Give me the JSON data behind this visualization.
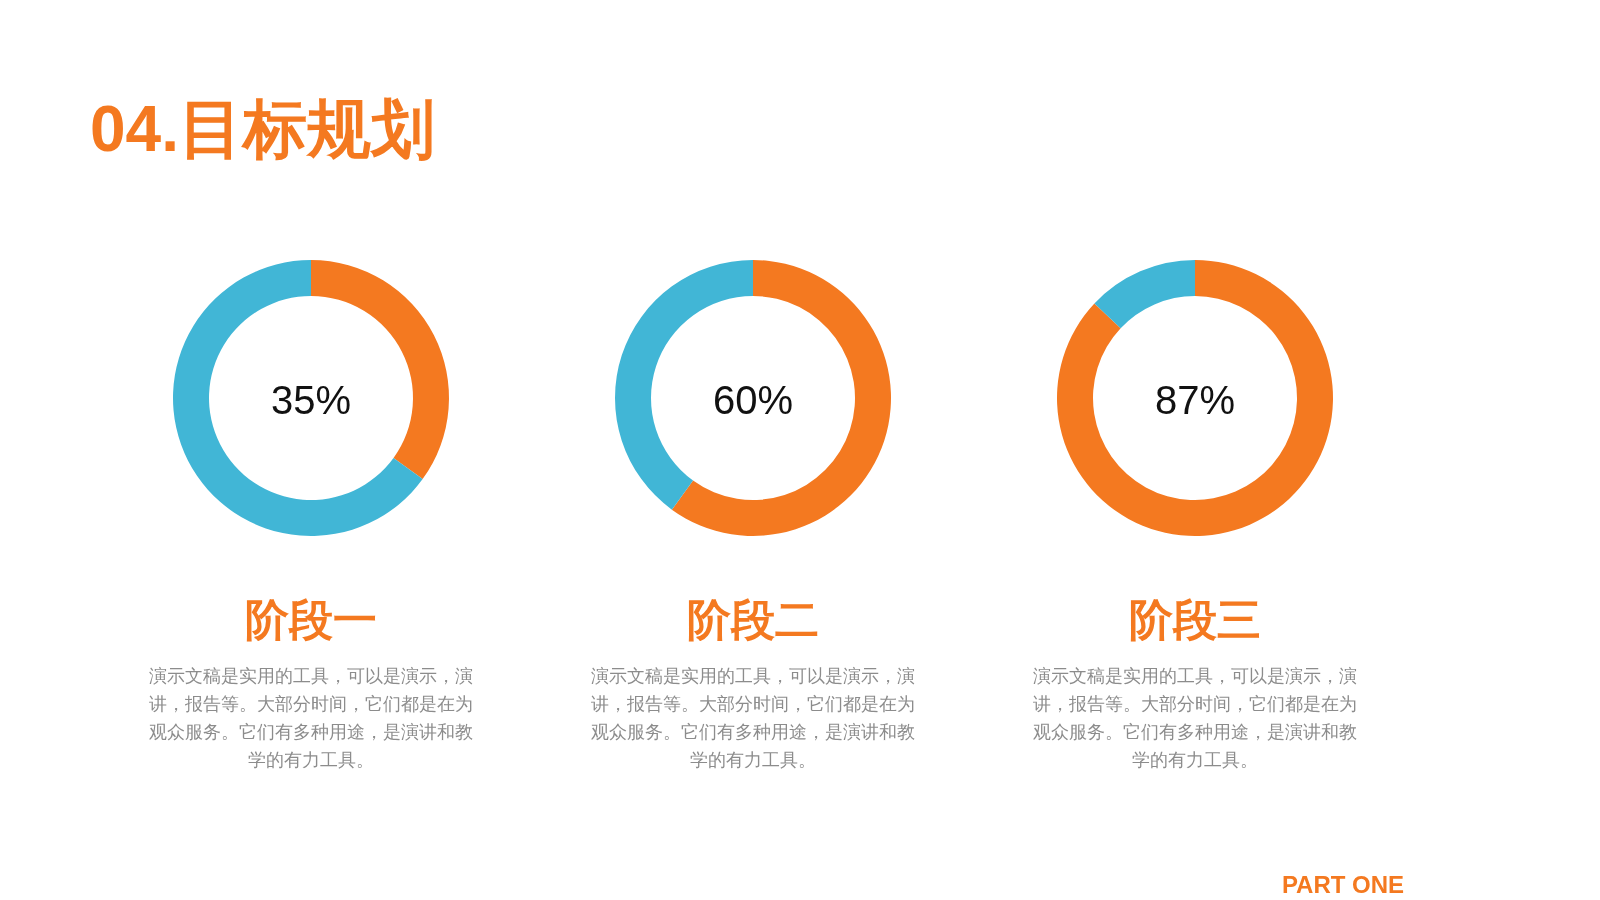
{
  "chart_data": [
    {
      "type": "donut",
      "title": "阶段一",
      "subtitle": "演示文稿是实用的工具，可以是演示，演讲，报告等。大部分时间，它们都是在为观众服务。它们有多种用途，是演讲和教学的有力工具。",
      "categories": [
        null,
        null
      ],
      "values": [
        35,
        65
      ],
      "colors": [
        "#f47920",
        "#41b6d6"
      ],
      "annotations": [
        "35%",
        "04.目标规划"
      ]
    },
    {
      "type": "donut",
      "title": "阶段二",
      "subtitle": "演示文稿是实用的工具，可以是演示，演讲，报告等。大部分时间，它们都是在为观众服务。它们有多种用途，是演讲和教学的有力工具。",
      "categories": [
        null,
        null
      ],
      "values": [
        60,
        40
      ],
      "colors": [
        "#f47920",
        "#41b6d6"
      ],
      "annotations": [
        "60%"
      ]
    },
    {
      "type": "donut",
      "title": "阶段三",
      "subtitle": "演示文稿是实用的工具，可以是演示，演讲，报告等。大部分时间，它们都是在为观众服务。它们有多种用途，是演讲和教学的有力工具。",
      "categories": [
        null,
        null
      ],
      "values": [
        87,
        13
      ],
      "colors": [
        "#f47920",
        "#41b6d6"
      ],
      "annotations": [
        "87%",
        "PART ONE"
      ]
    }
  ]
}
